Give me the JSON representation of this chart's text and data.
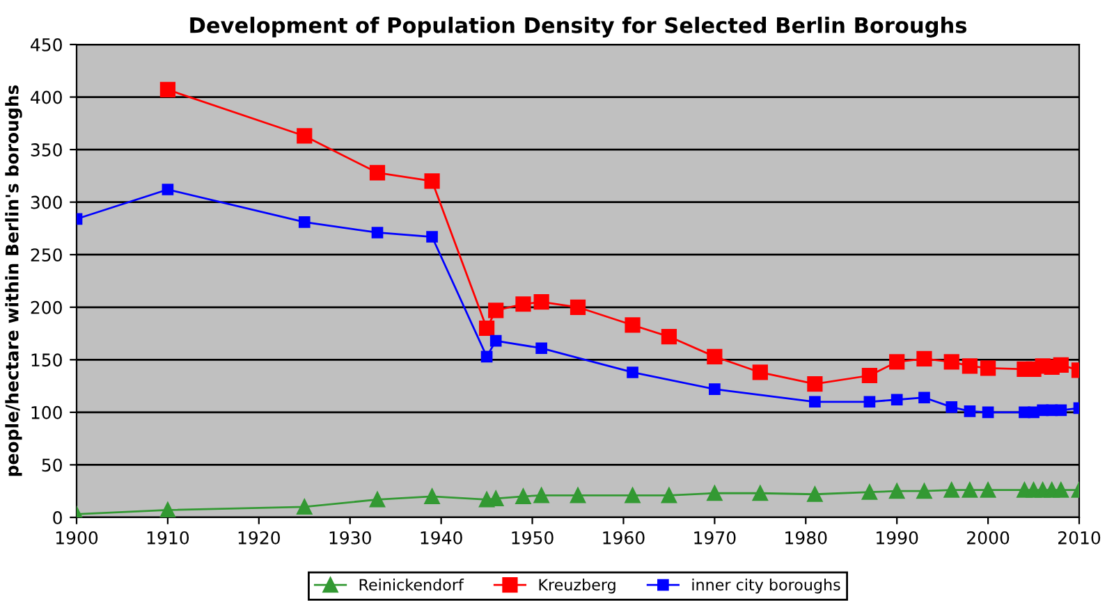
{
  "chart_data": {
    "type": "line",
    "title": "Development of Population Density for Selected Berlin Boroughs",
    "ylabel": "people/hectare within Berlin's boroughs",
    "series": [
      {
        "name": "Reinickendorf",
        "color": "#339933",
        "marker": "triangle",
        "x": [
          1900,
          1910,
          1925,
          1933,
          1939,
          1945,
          1946,
          1949,
          1951,
          1955,
          1961,
          1965,
          1970,
          1975,
          1981,
          1987,
          1990,
          1993,
          1996,
          1998,
          2000,
          2004,
          2005,
          2006,
          2007,
          2008,
          2010
        ],
        "values": [
          3,
          7,
          10,
          17,
          20,
          17,
          18,
          20,
          21,
          21,
          21,
          21,
          23,
          23,
          22,
          24,
          25,
          25,
          26,
          26,
          26,
          26,
          26,
          26,
          26,
          26,
          26
        ]
      },
      {
        "name": "Kreuzberg",
        "color": "#ff0000",
        "marker": "square",
        "x": [
          1910,
          1925,
          1933,
          1939,
          1945,
          1946,
          1949,
          1951,
          1955,
          1961,
          1965,
          1970,
          1975,
          1981,
          1987,
          1990,
          1993,
          1996,
          1998,
          2000,
          2004,
          2005,
          2006,
          2007,
          2008,
          2010
        ],
        "values": [
          407,
          363,
          328,
          320,
          180,
          197,
          203,
          205,
          200,
          183,
          172,
          153,
          138,
          127,
          135,
          148,
          151,
          148,
          144,
          142,
          141,
          141,
          144,
          143,
          145,
          140
        ]
      },
      {
        "name": "inner city boroughs",
        "color": "#0000ff",
        "marker": "square",
        "x": [
          1900,
          1910,
          1925,
          1933,
          1939,
          1945,
          1946,
          1951,
          1961,
          1970,
          1981,
          1987,
          1990,
          1993,
          1996,
          1998,
          2000,
          2004,
          2005,
          2006,
          2007,
          2008,
          2010
        ],
        "values": [
          284,
          312,
          281,
          271,
          267,
          153,
          168,
          161,
          138,
          122,
          110,
          110,
          112,
          114,
          105,
          101,
          100,
          100,
          100,
          102,
          102,
          102,
          104
        ]
      }
    ],
    "xlim": [
      1900,
      2010
    ],
    "xticks": [
      1900,
      1910,
      1920,
      1930,
      1940,
      1950,
      1960,
      1970,
      1980,
      1990,
      2000,
      2010
    ],
    "ylim": [
      0,
      450
    ],
    "yticks": [
      0,
      50,
      100,
      150,
      200,
      250,
      300,
      350,
      400,
      450
    ],
    "grid": "y",
    "legend": "bottom",
    "line_style": "solid"
  }
}
